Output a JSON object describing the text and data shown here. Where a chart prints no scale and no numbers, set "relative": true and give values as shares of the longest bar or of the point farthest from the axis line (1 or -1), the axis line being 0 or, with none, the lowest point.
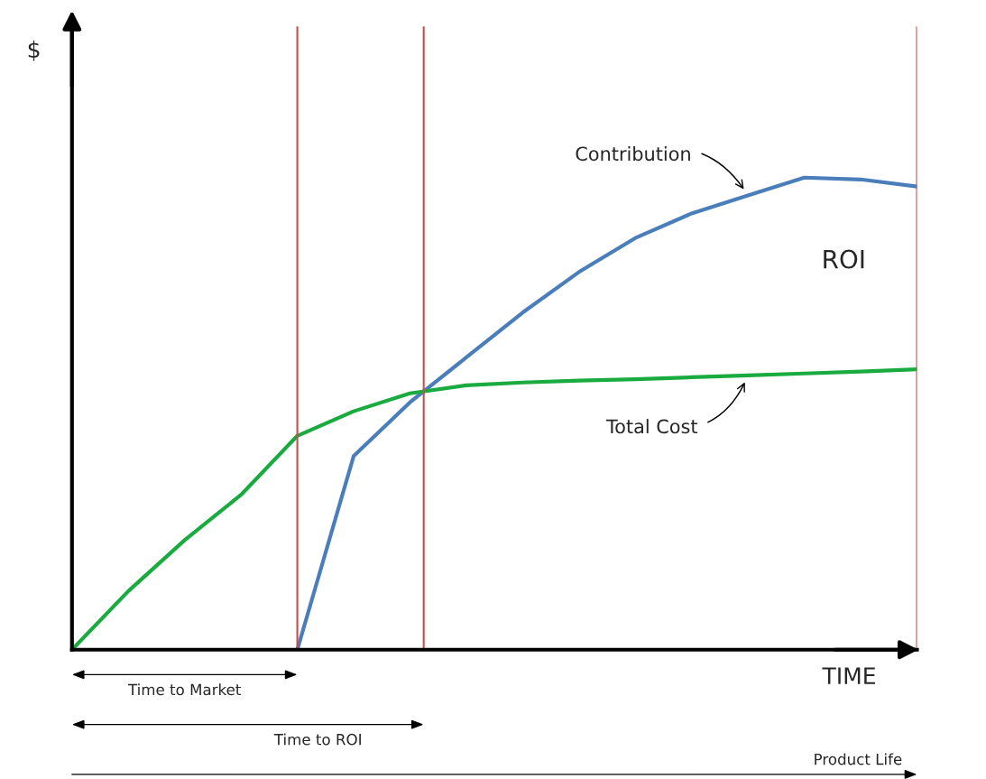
{
  "chart_data": {
    "type": "line",
    "relative": true,
    "xlabel": "TIME",
    "categories": [
      null,
      null,
      null,
      null,
      null,
      null,
      null,
      null,
      null,
      null,
      null,
      null,
      null,
      null,
      null,
      null
    ],
    "series": [
      {
        "name": "Contribution",
        "color": "#4a7ebb",
        "values": [
          null,
          null,
          null,
          null,
          0,
          0.41,
          0.524,
          0.619,
          0.714,
          0.8,
          0.872,
          0.924,
          0.962,
          1.0,
          0.996,
          0.981
        ]
      },
      {
        "name": "Total Cost",
        "color": "#1aab40",
        "values": [
          0,
          0.124,
          0.232,
          0.328,
          0.453,
          0.505,
          0.543,
          0.56,
          0.566,
          0.57,
          0.573,
          0.577,
          0.581,
          0.585,
          0.589,
          0.594
        ]
      }
    ],
    "annotations": [
      "ROI",
      "Time to Market",
      "Time to ROI",
      "Product Life",
      "$"
    ],
    "legend": false,
    "marker": "none",
    "line_style": "solid"
  }
}
